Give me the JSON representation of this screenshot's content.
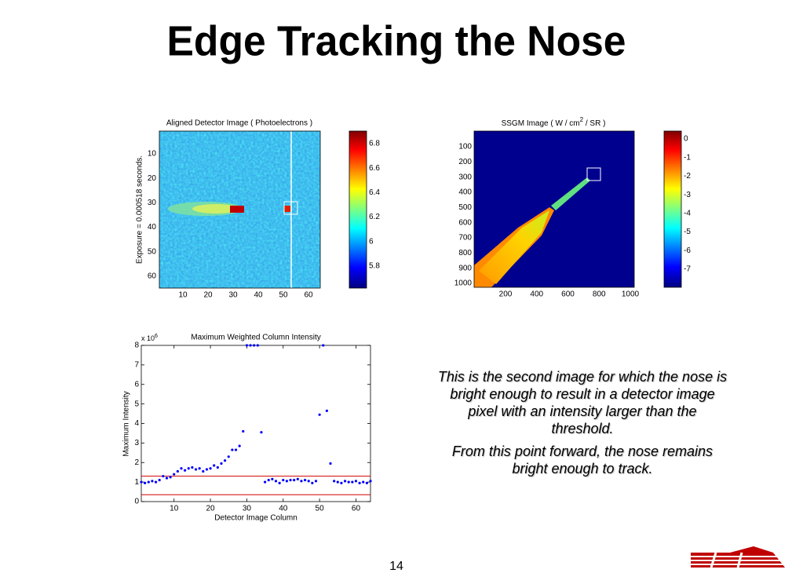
{
  "title": "Edge Tracking the Nose",
  "detector_image": {
    "title": "Aligned Detector Image ( Photoelectrons )",
    "ylabel": "Exposure = 0.000518 seconds.",
    "xticks": [
      "10",
      "20",
      "30",
      "40",
      "50",
      "60"
    ],
    "yticks": [
      "10",
      "20",
      "30",
      "40",
      "50",
      "60"
    ],
    "colorbar_ticks": [
      "6.8",
      "6.6",
      "6.4",
      "6.2",
      "6",
      "5.8"
    ]
  },
  "ssgm_image": {
    "title": "SSGM Image ( W / cm",
    "title_superscript": "2",
    "title_end": " / SR )",
    "xticks": [
      "200",
      "400",
      "600",
      "800",
      "1000"
    ],
    "yticks": [
      "100",
      "200",
      "300",
      "400",
      "500",
      "600",
      "700",
      "800",
      "900",
      "1000"
    ],
    "colorbar_ticks": [
      "0",
      "-1",
      "-2",
      "-3",
      "-4",
      "-5",
      "-6",
      "-7"
    ]
  },
  "chart_data": {
    "type": "scatter",
    "title": "Maximum Weighted Column Intensity",
    "x_label": "Detector Image Column",
    "y_label": "Maximum Intensity",
    "y_multiplier": "x 10",
    "y_multiplier_exponent": "6",
    "color": "#0000ff",
    "x": [
      1,
      2,
      3,
      4,
      5,
      6,
      7,
      8,
      9,
      10,
      11,
      12,
      13,
      14,
      15,
      16,
      17,
      18,
      19,
      20,
      21,
      22,
      23,
      24,
      25,
      26,
      27,
      28,
      29,
      30,
      31,
      32,
      33,
      34,
      35,
      36,
      37,
      38,
      39,
      40,
      41,
      42,
      43,
      44,
      45,
      46,
      47,
      48,
      49,
      50,
      51,
      52,
      53,
      54,
      55,
      56,
      57,
      58,
      59,
      60,
      61,
      62,
      63,
      64
    ],
    "values": [
      1.0,
      0.95,
      1.0,
      1.05,
      1.0,
      1.1,
      1.3,
      1.2,
      1.25,
      1.4,
      1.55,
      1.7,
      1.6,
      1.7,
      1.75,
      1.65,
      1.7,
      1.55,
      1.65,
      1.7,
      1.85,
      1.75,
      1.95,
      2.1,
      2.3,
      2.65,
      2.65,
      2.85,
      3.6,
      8,
      8,
      8,
      8,
      3.55,
      1.0,
      1.1,
      1.15,
      1.05,
      0.95,
      1.1,
      1.05,
      1.1,
      1.1,
      1.15,
      1.05,
      1.1,
      1.05,
      0.95,
      1.05,
      4.45,
      8,
      4.65,
      1.95,
      1.05,
      1.0,
      0.95,
      1.05,
      1.0,
      1.0,
      1.05,
      0.95,
      1.0,
      0.95,
      1.05
    ],
    "hlines": [
      {
        "value": 1.3,
        "color": "#d00000"
      },
      {
        "value": 0.35,
        "color": "#d00000"
      }
    ],
    "xlim": [
      1,
      64
    ],
    "ylim": [
      0,
      8
    ],
    "xticks": [
      10,
      20,
      30,
      40,
      50,
      60
    ],
    "yticks": [
      0,
      1,
      2,
      3,
      4,
      5,
      6,
      7,
      8
    ]
  },
  "paragraphs": [
    "This is the second image for which the nose is bright enough to result in a detector image pixel with an intensity larger than the threshold.",
    "From this point forward, the nose remains bright enough to track."
  ],
  "page_number": "14"
}
